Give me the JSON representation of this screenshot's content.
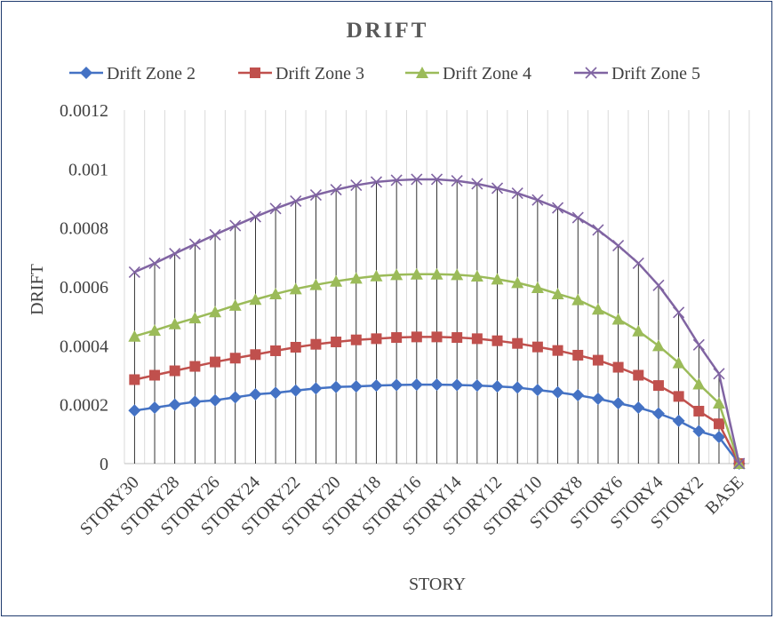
{
  "chart_data": {
    "type": "line",
    "title": "DRIFT",
    "xlabel": "STORY",
    "ylabel": "DRIFT",
    "ylim": [
      0,
      0.0012
    ],
    "yticks": [
      "0",
      "0.0002",
      "0.0004",
      "0.0006",
      "0.0008",
      "0.001",
      "0.0012"
    ],
    "ytick_values": [
      0,
      0.0002,
      0.0004,
      0.0006,
      0.0008,
      0.001,
      0.0012
    ],
    "grid": "vertical",
    "legend": "top",
    "categories": [
      "STORY30",
      "STORY29",
      "STORY28",
      "STORY27",
      "STORY26",
      "STORY25",
      "STORY24",
      "STORY23",
      "STORY22",
      "STORY21",
      "STORY20",
      "STORY19",
      "STORY18",
      "STORY17",
      "STORY16",
      "STORY15",
      "STORY14",
      "STORY13",
      "STORY12",
      "STORY11",
      "STORY10",
      "STORY9",
      "STORY8",
      "STORY7",
      "STORY6",
      "STORY5",
      "STORY4",
      "STORY3",
      "STORY2",
      "STORY1",
      "BASE"
    ],
    "shown_tick_labels": [
      "STORY30",
      "STORY28",
      "STORY26",
      "STORY24",
      "STORY22",
      "STORY20",
      "STORY18",
      "STORY16",
      "STORY14",
      "STORY12",
      "STORY10",
      "STORY8",
      "STORY6",
      "STORY4",
      "STORY2",
      "BASE"
    ],
    "series": [
      {
        "name": "Drift Zone 2",
        "color": "#4472c4",
        "marker": "diamond",
        "values": [
          0.00018,
          0.00019,
          0.0002,
          0.00021,
          0.000215,
          0.000225,
          0.000235,
          0.00024,
          0.000248,
          0.000255,
          0.00026,
          0.000262,
          0.000265,
          0.000267,
          0.000268,
          0.000268,
          0.000267,
          0.000265,
          0.000262,
          0.000258,
          0.00025,
          0.000242,
          0.000232,
          0.00022,
          0.000205,
          0.00019,
          0.00017,
          0.000145,
          0.00011,
          9e-05,
          0
        ]
      },
      {
        "name": "Drift Zone 3",
        "color": "#c0504d",
        "marker": "square",
        "values": [
          0.000285,
          0.0003,
          0.000315,
          0.00033,
          0.000345,
          0.000358,
          0.00037,
          0.000383,
          0.000395,
          0.000405,
          0.000413,
          0.00042,
          0.000424,
          0.000428,
          0.00043,
          0.00043,
          0.000428,
          0.000424,
          0.000417,
          0.000408,
          0.000396,
          0.000384,
          0.000368,
          0.000351,
          0.000327,
          0.0003,
          0.000265,
          0.000228,
          0.000178,
          0.000135,
          0
        ]
      },
      {
        "name": "Drift Zone 4",
        "color": "#9bbb59",
        "marker": "triangle",
        "values": [
          0.000432,
          0.000452,
          0.000474,
          0.000494,
          0.000515,
          0.000537,
          0.000557,
          0.000576,
          0.000593,
          0.000607,
          0.000619,
          0.000629,
          0.000637,
          0.000641,
          0.000643,
          0.000643,
          0.000641,
          0.000636,
          0.000626,
          0.000614,
          0.000597,
          0.000576,
          0.000556,
          0.000524,
          0.00049,
          0.00045,
          0.0004,
          0.000342,
          0.00027,
          0.000205,
          0
        ]
      },
      {
        "name": "Drift Zone 5",
        "color": "#8064a2",
        "marker": "x",
        "values": [
          0.00065,
          0.00068,
          0.000713,
          0.000745,
          0.000777,
          0.000808,
          0.000838,
          0.000866,
          0.000891,
          0.000912,
          0.00093,
          0.000945,
          0.000956,
          0.000962,
          0.000965,
          0.000965,
          0.00096,
          0.00095,
          0.000935,
          0.000918,
          0.000895,
          0.000868,
          0.000835,
          0.000793,
          0.00074,
          0.00068,
          0.000605,
          0.000513,
          0.000403,
          0.000305,
          0
        ]
      }
    ]
  }
}
